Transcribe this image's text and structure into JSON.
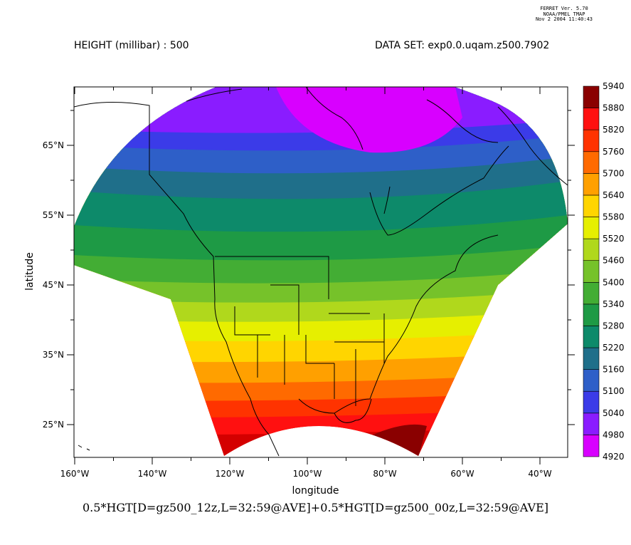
{
  "header": {
    "left": "HEIGHT (millibar) : 500",
    "right": "DATA SET: exp0.0.uqam.z500.7902",
    "stamp_lines": [
      "FERRET Ver. 5.70",
      "NOAA/PMEL TMAP",
      "Nov  2 2004 11:40:43"
    ]
  },
  "footer": "0.5*HGT[D=gz500_12z,L=32:59@AVE]+0.5*HGT[D=gz500_00z,L=32:59@AVE]",
  "chart_data": {
    "type": "heatmap",
    "title": "HEIGHT (millibar) : 500",
    "xlabel": "longitude",
    "ylabel": "latitude",
    "xlim": [
      -163,
      -35
    ],
    "ylim": [
      20,
      72
    ],
    "x_ticks": [
      {
        "value": -160,
        "label": "160°W"
      },
      {
        "value": -140,
        "label": "140°W"
      },
      {
        "value": -120,
        "label": "120°W"
      },
      {
        "value": -100,
        "label": "100°W"
      },
      {
        "value": -80,
        "label": "80°W"
      },
      {
        "value": -60,
        "label": "60°W"
      },
      {
        "value": -40,
        "label": "40°W"
      }
    ],
    "y_ticks": [
      {
        "value": 25,
        "label": "25°N"
      },
      {
        "value": 35,
        "label": "35°N"
      },
      {
        "value": 45,
        "label": "45°N"
      },
      {
        "value": 55,
        "label": "55°N"
      },
      {
        "value": 65,
        "label": "65°N"
      }
    ],
    "colorbar": {
      "levels": [
        4920,
        4980,
        5040,
        5100,
        5160,
        5220,
        5280,
        5340,
        5400,
        5460,
        5520,
        5580,
        5640,
        5700,
        5760,
        5820,
        5880,
        5940
      ],
      "colors": [
        "#d800ff",
        "#8a1cff",
        "#3b3be8",
        "#2e5fc8",
        "#1f6f8a",
        "#0d8a6a",
        "#1e9a45",
        "#43ad34",
        "#76c22a",
        "#b0d81c",
        "#e6ef00",
        "#ffd500",
        "#ffa000",
        "#ff6a00",
        "#ff3300",
        "#ff1010",
        "#d40000",
        "#8a0000"
      ]
    },
    "contours_description_values": [
      {
        "band_lat": 69,
        "value": 4920
      },
      {
        "band_lat": 57,
        "value": 5160
      },
      {
        "band_lat": 49,
        "value": 5280
      },
      {
        "band_lat": 40,
        "value": 5520
      },
      {
        "band_lat": 32,
        "value": 5700
      },
      {
        "band_lat": 24,
        "value": 5820
      }
    ]
  }
}
